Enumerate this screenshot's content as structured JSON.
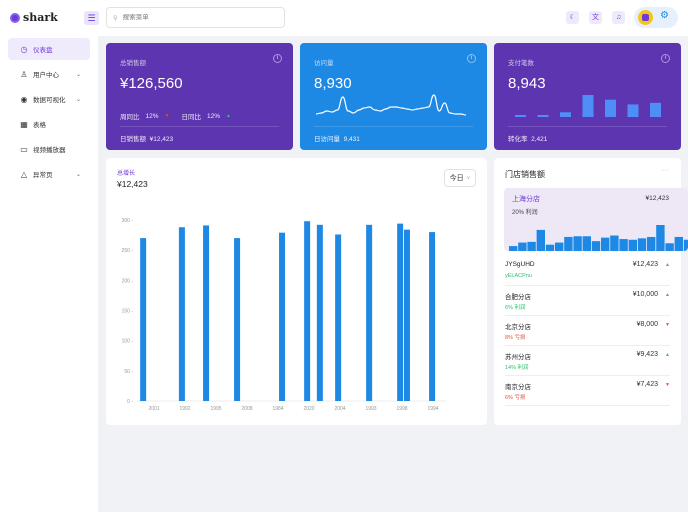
{
  "app": {
    "name": "shark"
  },
  "sidebar": {
    "items": [
      {
        "label": "仪表盘",
        "icon": "dashboard-icon",
        "active": true,
        "expandable": false
      },
      {
        "label": "用户中心",
        "icon": "user-icon",
        "expandable": true
      },
      {
        "label": "数据可视化",
        "icon": "eye-icon",
        "expandable": true
      },
      {
        "label": "表格",
        "icon": "table-icon",
        "expandable": false
      },
      {
        "label": "视频播放器",
        "icon": "video-icon",
        "expandable": false
      },
      {
        "label": "异常页",
        "icon": "warning-icon",
        "expandable": true
      }
    ]
  },
  "header": {
    "search_placeholder": "搜索菜单",
    "search_value": ""
  },
  "colors": {
    "purple": "#5e35b1",
    "blue": "#1e88e5",
    "up": "#27c26b",
    "down": "#e2553f"
  },
  "cards": {
    "sales": {
      "label": "总销售额",
      "value": "¥126,560",
      "week_label": "周同比",
      "week_value": "12%",
      "day_label": "日同比",
      "day_value": "12%",
      "footer_label": "日销售额",
      "footer_value": "¥12,423"
    },
    "visits": {
      "label": "访问量",
      "value": "8,930",
      "footer_label": "日访问量",
      "footer_value": "9,431",
      "sparkline": [
        5,
        6,
        8,
        7,
        9,
        22,
        8,
        6,
        9,
        11,
        12,
        9,
        8,
        10,
        12,
        12,
        11,
        10,
        9,
        10,
        11,
        12,
        24,
        8,
        16,
        6,
        5,
        5,
        4
      ]
    },
    "payments": {
      "label": "支付笔数",
      "value": "8,943",
      "footer_label": "转化率",
      "footer_value": "2,421",
      "bars": [
        1,
        1,
        3,
        14,
        11,
        8,
        9
      ]
    }
  },
  "growth": {
    "label": "总增长",
    "value": "¥12,423",
    "select": "今日"
  },
  "chart_data": {
    "type": "bar",
    "title": "总增长",
    "ylim": [
      0,
      300
    ],
    "yticks": [
      0,
      50,
      100,
      150,
      200,
      250,
      300
    ],
    "tick_labels": [
      "2001",
      "1992",
      "1995",
      "2008",
      "1984",
      "2020",
      "2004",
      "1993",
      "1998",
      "1994"
    ],
    "bars": [
      {
        "x": -0.35,
        "value": 270
      },
      {
        "x": 0.9,
        "value": 288
      },
      {
        "x": 1.68,
        "value": 291
      },
      {
        "x": 2.68,
        "value": 270
      },
      {
        "x": 4.13,
        "value": 279
      },
      {
        "x": 4.94,
        "value": 298
      },
      {
        "x": 5.35,
        "value": 292
      },
      {
        "x": 5.94,
        "value": 276
      },
      {
        "x": 6.94,
        "value": 292
      },
      {
        "x": 7.94,
        "value": 294
      },
      {
        "x": 8.16,
        "value": 284
      },
      {
        "x": 8.97,
        "value": 280
      }
    ]
  },
  "stores": {
    "title": "门店销售额",
    "more": "···",
    "featured": {
      "name": "上海分店",
      "value": "¥12,423",
      "profit": "20% 利润",
      "bars": [
        7,
        12,
        13,
        30,
        9,
        12,
        20,
        21,
        21,
        14,
        19,
        22,
        17,
        16,
        18,
        20,
        37,
        11,
        20,
        16
      ]
    },
    "list": [
      {
        "name": "JYSgUHD",
        "profit": "yELACPnu",
        "value": "¥12,423",
        "trend": "up"
      },
      {
        "name": "合肥分店",
        "profit": "6% 利润",
        "value": "¥10,000",
        "trend": "up"
      },
      {
        "name": "北京分店",
        "profit": "8% 亏损",
        "value": "¥8,000",
        "trend": "down"
      },
      {
        "name": "苏州分店",
        "profit": "14% 利润",
        "value": "¥9,423",
        "trend": "up"
      },
      {
        "name": "南京分店",
        "profit": "6% 亏损",
        "value": "¥7,423",
        "trend": "down"
      }
    ]
  }
}
